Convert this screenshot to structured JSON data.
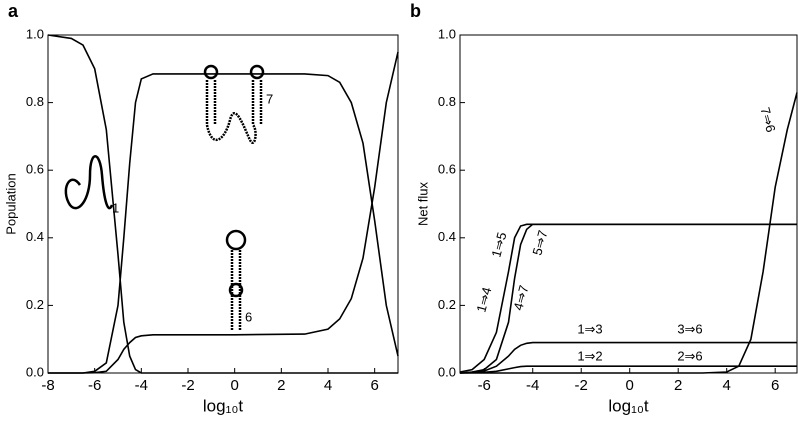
{
  "chart_data": [
    {
      "type": "line",
      "panel_label": "a",
      "xlabel": "log₁₀t",
      "ylabel": "Population",
      "xlim": [
        -8,
        7
      ],
      "ylim": [
        0,
        1
      ],
      "xticks": [
        -8,
        -6,
        -4,
        -2,
        0,
        2,
        4,
        6
      ],
      "yticks": [
        {
          "value": 0,
          "label": "0.0"
        },
        0.2,
        0.4,
        0.6,
        0.8,
        {
          "value": 1,
          "label": "1.0"
        }
      ],
      "x": [
        -8,
        -7,
        -6.5,
        -6,
        -5.5,
        -5,
        -4.75,
        -4.5,
        -4.25,
        -4,
        -3.5,
        0,
        3,
        4,
        4.5,
        5,
        5.5,
        6,
        6.5,
        7
      ],
      "series": [
        {
          "color": "#000000",
          "values": [
            1.0,
            0.99,
            0.97,
            0.9,
            0.72,
            0.35,
            0.15,
            0.05,
            0.01,
            0,
            0,
            0,
            0,
            0,
            0,
            0,
            0,
            0,
            0,
            0
          ]
        },
        {
          "color": "#000000",
          "values": [
            0,
            0,
            0,
            0.005,
            0.03,
            0.2,
            0.4,
            0.62,
            0.8,
            0.87,
            0.885,
            0.885,
            0.885,
            0.88,
            0.86,
            0.8,
            0.68,
            0.45,
            0.2,
            0.05
          ]
        },
        {
          "color": "#000000",
          "values": [
            0,
            0,
            0,
            0.001,
            0.005,
            0.04,
            0.07,
            0.09,
            0.105,
            0.11,
            0.113,
            0.113,
            0.115,
            0.13,
            0.16,
            0.22,
            0.34,
            0.55,
            0.8,
            0.95
          ]
        }
      ],
      "annotations": [
        "1",
        "7",
        "6"
      ]
    },
    {
      "type": "line",
      "panel_label": "b",
      "xlabel": "log₁₀t",
      "ylabel": "Net  flux",
      "xlim": [
        -7,
        6.9
      ],
      "ylim": [
        0,
        1
      ],
      "xticks": [
        -6,
        -4,
        -2,
        0,
        2,
        4,
        6
      ],
      "yticks": [
        {
          "value": 0,
          "label": "0.0"
        },
        0.2,
        0.4,
        0.6,
        0.8,
        {
          "value": 1,
          "label": "1.0"
        }
      ],
      "x": [
        -7,
        -6.5,
        -6,
        -5.5,
        -5,
        -4.75,
        -4.5,
        -4.25,
        -4,
        -3.5,
        0,
        3,
        4,
        4.5,
        5,
        5.5,
        6,
        6.5,
        6.9
      ],
      "series": [
        {
          "color": "#000000",
          "values": [
            0.003,
            0.01,
            0.04,
            0.12,
            0.3,
            0.4,
            0.435,
            0.44,
            0.44,
            0.44,
            0.44,
            0.44,
            0.44,
            0.44,
            0.44,
            0.44,
            0.44,
            0.44,
            0.44
          ]
        },
        {
          "color": "#000000",
          "values": [
            0,
            0.003,
            0.01,
            0.04,
            0.15,
            0.28,
            0.38,
            0.425,
            0.44,
            0.44,
            0.44,
            0.44,
            0.44,
            0.44,
            0.44,
            0.44,
            0.44,
            0.44,
            0.44
          ]
        },
        {
          "color": "#000000",
          "values": [
            0,
            0.002,
            0.006,
            0.02,
            0.05,
            0.07,
            0.082,
            0.088,
            0.09,
            0.09,
            0.09,
            0.09,
            0.09,
            0.09,
            0.09,
            0.09,
            0.09,
            0.09,
            0.09
          ]
        },
        {
          "color": "#000000",
          "values": [
            0,
            0.001,
            0.002,
            0.005,
            0.012,
            0.016,
            0.019,
            0.02,
            0.02,
            0.02,
            0.02,
            0.02,
            0.02,
            0.02,
            0.02,
            0.02,
            0.02,
            0.02,
            0.02
          ]
        },
        {
          "color": "#000000",
          "values": [
            0,
            0,
            0,
            0,
            0,
            0,
            0,
            0,
            0,
            0,
            0,
            0,
            0.003,
            0.02,
            0.1,
            0.3,
            0.55,
            0.72,
            0.83
          ]
        }
      ],
      "annotations": [
        "1⇒4",
        "1⇒5",
        "4⇒7",
        "5⇒7",
        "7⇒6",
        "1⇒3",
        "3⇒6",
        "1⇒2",
        "2⇒6"
      ]
    }
  ]
}
